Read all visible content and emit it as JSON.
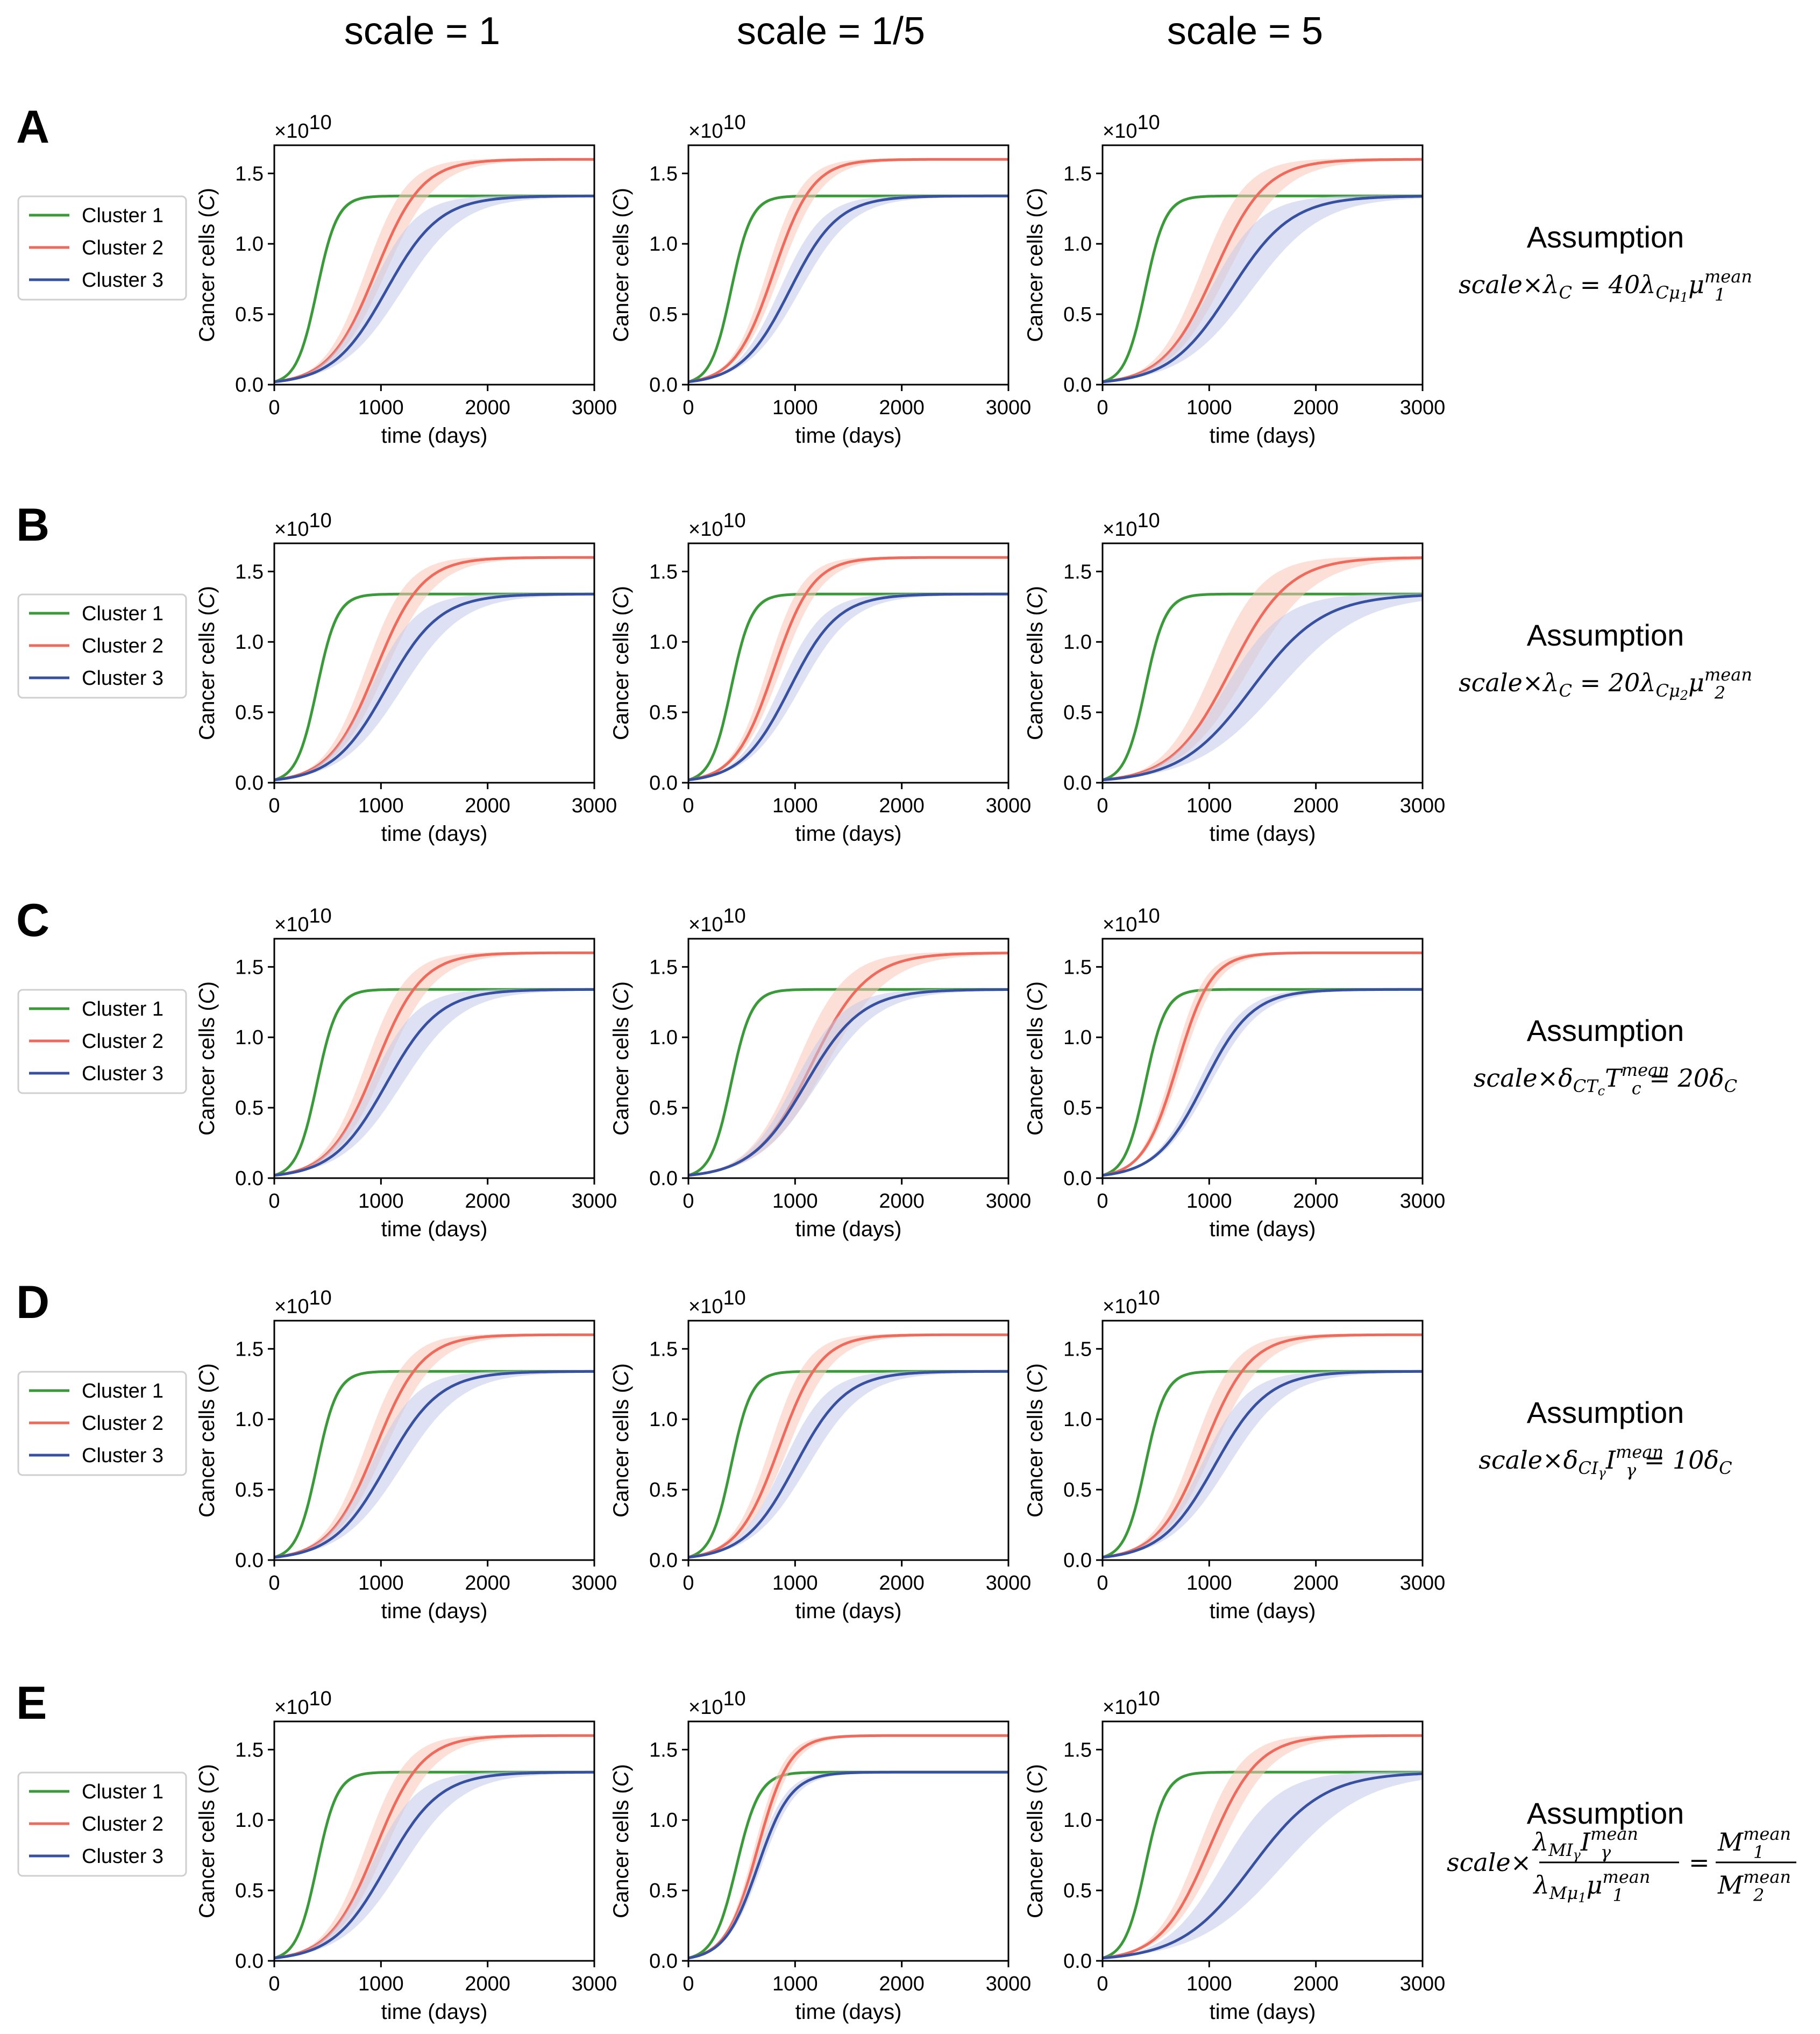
{
  "column_headers": [
    "scale = 1",
    "scale = 1/5",
    "scale = 5"
  ],
  "row_letters": [
    "A",
    "B",
    "C",
    "D",
    "E"
  ],
  "legend_entries": [
    "Cluster 1",
    "Cluster 2",
    "Cluster 3"
  ],
  "colors": {
    "cluster1": "#3a9a3a",
    "cluster2": "#ee6a5c",
    "cluster3": "#3850a0",
    "band1": "#a9d9a0",
    "band2": "#f9c6b6",
    "band3": "#c2c8ea"
  },
  "assumption_title": "Assumption",
  "assumptions": [
    {
      "lhs": "scale×λ",
      "rhs": "= 40λ",
      "plain": "scale×λ_C = 40λ_{Cμ1} μ1^{mean}"
    },
    {
      "lhs": "scale×λ",
      "rhs": "= 20λ",
      "plain": "scale×λ_C = 20λ_{Cμ2} μ2^{mean}"
    },
    {
      "lhs": "scale×δ",
      "rhs": "= 20δ",
      "plain": "scale×δ_{CTc} Tc^{mean} = 20δ_C"
    },
    {
      "lhs": "scale×δ",
      "rhs": "= 10δ",
      "plain": "scale×δ_{CIγ} Iγ^{mean} = 10δ_C"
    },
    {
      "lhs": "scale×",
      "rhs": "=",
      "plain": "scale×(λ_{MIγ} Iγ^{mean})/(λ_{Mμ1} μ1^{mean}) = M1^{mean}/M2^{mean}"
    }
  ],
  "chart_data": {
    "type": "line",
    "ylabel": "Cancer cells (C)",
    "xlabel": "time (days)",
    "y_multiplier": "×10^10",
    "xlim": [
      0,
      3000
    ],
    "ylim": [
      0,
      1.7
    ],
    "xticks": [
      0,
      1000,
      2000,
      3000
    ],
    "yticks": [
      0.0,
      0.5,
      1.0,
      1.5
    ],
    "series_names": [
      "Cluster 1",
      "Cluster 2",
      "Cluster 3"
    ],
    "plateaus": [
      1.34,
      1.6,
      1.34
    ],
    "panels": [
      {
        "row": "A",
        "scale": "1",
        "midpoint_days": [
          400,
          950,
          1050
        ],
        "band_width": [
          0.02,
          0.1,
          0.14
        ]
      },
      {
        "row": "A",
        "scale": "1/5",
        "midpoint_days": [
          400,
          800,
          950
        ],
        "band_width": [
          0.02,
          0.08,
          0.1
        ]
      },
      {
        "row": "A",
        "scale": "5",
        "midpoint_days": [
          400,
          1050,
          1200
        ],
        "band_width": [
          0.02,
          0.12,
          0.16
        ]
      },
      {
        "row": "B",
        "scale": "1",
        "midpoint_days": [
          400,
          950,
          1050
        ],
        "band_width": [
          0.02,
          0.1,
          0.14
        ]
      },
      {
        "row": "B",
        "scale": "1/5",
        "midpoint_days": [
          400,
          800,
          950
        ],
        "band_width": [
          0.02,
          0.08,
          0.1
        ]
      },
      {
        "row": "B",
        "scale": "5",
        "midpoint_days": [
          400,
          1200,
          1400
        ],
        "band_width": [
          0.02,
          0.14,
          0.18
        ]
      },
      {
        "row": "C",
        "scale": "1",
        "midpoint_days": [
          400,
          950,
          1050
        ],
        "band_width": [
          0.02,
          0.1,
          0.14
        ]
      },
      {
        "row": "C",
        "scale": "1/5",
        "midpoint_days": [
          400,
          1150,
          1100
        ],
        "band_width": [
          0.02,
          0.12,
          0.1
        ]
      },
      {
        "row": "C",
        "scale": "5",
        "midpoint_days": [
          400,
          700,
          950
        ],
        "band_width": [
          0.02,
          0.06,
          0.06
        ]
      },
      {
        "row": "D",
        "scale": "1",
        "midpoint_days": [
          400,
          950,
          1050
        ],
        "band_width": [
          0.02,
          0.1,
          0.14
        ]
      },
      {
        "row": "D",
        "scale": "1/5",
        "midpoint_days": [
          400,
          850,
          1000
        ],
        "band_width": [
          0.02,
          0.1,
          0.12
        ]
      },
      {
        "row": "D",
        "scale": "5",
        "midpoint_days": [
          400,
          950,
          1050
        ],
        "band_width": [
          0.02,
          0.1,
          0.12
        ]
      },
      {
        "row": "E",
        "scale": "1",
        "midpoint_days": [
          400,
          950,
          1050
        ],
        "band_width": [
          0.02,
          0.1,
          0.14
        ]
      },
      {
        "row": "E",
        "scale": "1/5",
        "midpoint_days": [
          450,
          650,
          650
        ],
        "band_width": [
          0.02,
          0.05,
          0.05
        ]
      },
      {
        "row": "E",
        "scale": "5",
        "midpoint_days": [
          400,
          1000,
          1400
        ],
        "band_width": [
          0.02,
          0.1,
          0.2
        ]
      }
    ]
  }
}
